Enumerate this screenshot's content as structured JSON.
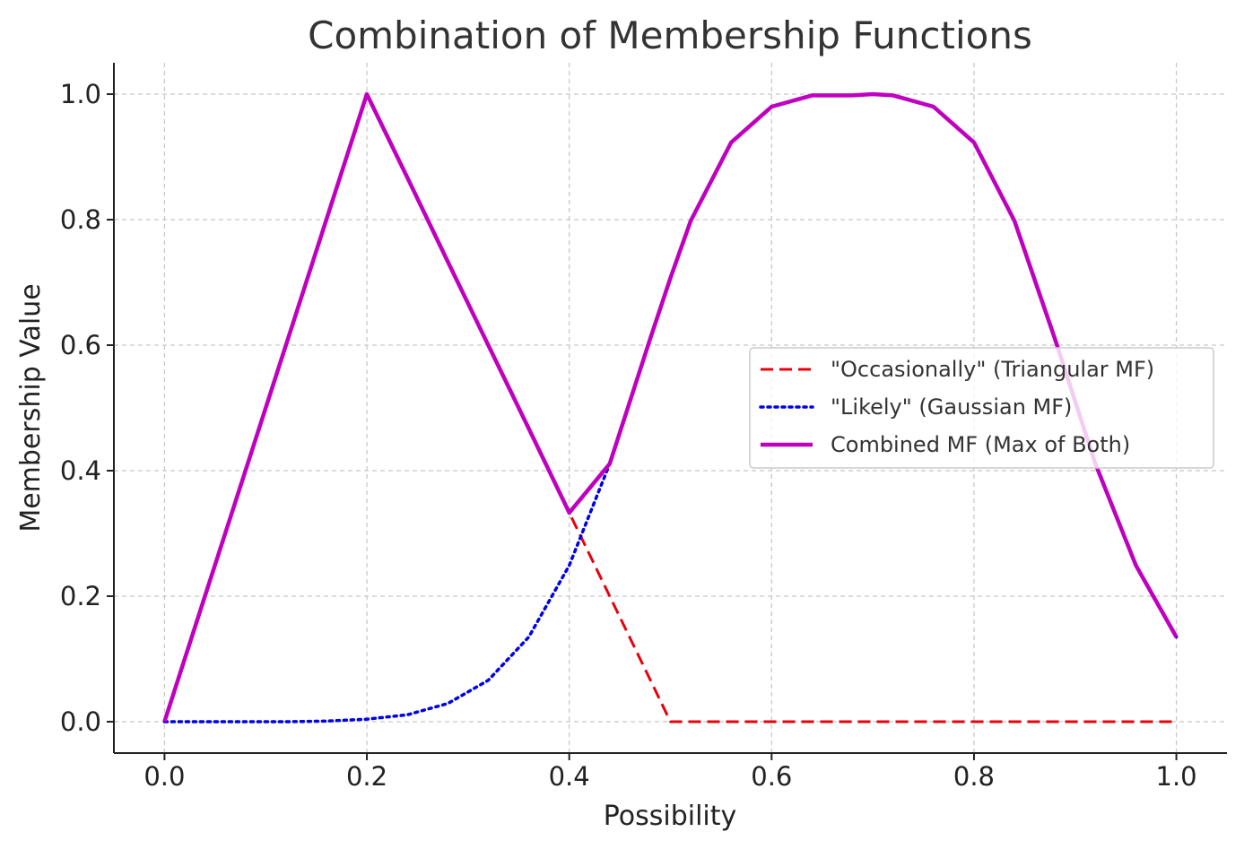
{
  "chart_data": {
    "type": "line",
    "title": "Combination of Membership Functions",
    "xlabel": "Possibility",
    "ylabel": "Membership Value",
    "xlim": [
      -0.05,
      1.05
    ],
    "ylim": [
      -0.05,
      1.05
    ],
    "xticks": [
      "0.0",
      "0.2",
      "0.4",
      "0.6",
      "0.8",
      "1.0"
    ],
    "yticks": [
      "0.0",
      "0.2",
      "0.4",
      "0.6",
      "0.8",
      "1.0"
    ],
    "grid": true,
    "legend_position": "center-right",
    "x": [
      0.0,
      0.04,
      0.08,
      0.12,
      0.16,
      0.2,
      0.24,
      0.28,
      0.32,
      0.36,
      0.4,
      0.44,
      0.48,
      0.5,
      0.52,
      0.56,
      0.6,
      0.64,
      0.68,
      0.7,
      0.72,
      0.76,
      0.8,
      0.84,
      0.88,
      0.92,
      0.96,
      1.0
    ],
    "series": [
      {
        "name": "\"Occasionally\" (Triangular MF)",
        "color": "#e8000b",
        "dash": "dashed",
        "values": [
          0.0,
          0.2,
          0.4,
          0.6,
          0.8,
          1.0,
          0.867,
          0.733,
          0.6,
          0.467,
          0.333,
          0.2,
          0.067,
          0.0,
          0.0,
          0.0,
          0.0,
          0.0,
          0.0,
          0.0,
          0.0,
          0.0,
          0.0,
          0.0,
          0.0,
          0.0,
          0.0,
          0.0
        ]
      },
      {
        "name": "\"Likely\" (Gaussian MF)",
        "color": "#0000e6",
        "dash": "dotted",
        "values": [
          0.0,
          0.0,
          0.0,
          0.0,
          0.001,
          0.004,
          0.011,
          0.029,
          0.066,
          0.135,
          0.249,
          0.411,
          0.61,
          0.707,
          0.798,
          0.923,
          0.98,
          0.998,
          0.998,
          1.0,
          0.998,
          0.98,
          0.923,
          0.798,
          0.61,
          0.411,
          0.249,
          0.135
        ]
      },
      {
        "name": "Combined MF (Max of Both)",
        "color": "#bf00bf",
        "dash": "solid",
        "values": [
          0.0,
          0.2,
          0.4,
          0.6,
          0.8,
          1.0,
          0.867,
          0.733,
          0.6,
          0.467,
          0.333,
          0.411,
          0.61,
          0.707,
          0.798,
          0.923,
          0.98,
          0.998,
          0.998,
          1.0,
          0.998,
          0.98,
          0.923,
          0.798,
          0.61,
          0.411,
          0.249,
          0.135
        ]
      }
    ]
  }
}
